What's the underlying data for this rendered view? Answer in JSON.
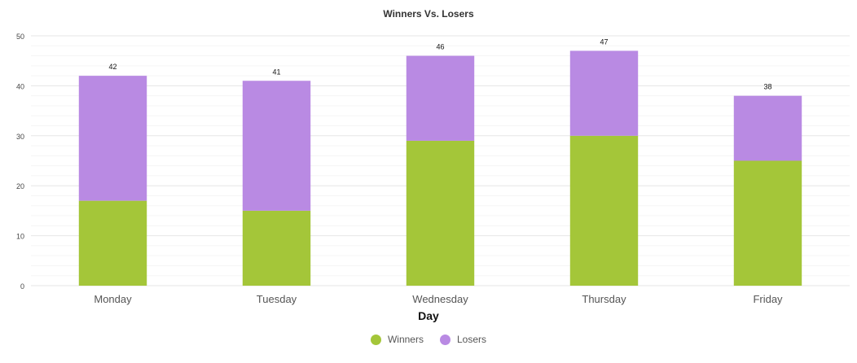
{
  "chart_data": {
    "type": "bar",
    "stacked": true,
    "title": "Winners Vs. Losers",
    "xlabel": "Day",
    "ylabel": "",
    "ylim": [
      0,
      50
    ],
    "yticks": [
      0,
      10,
      20,
      30,
      40,
      50
    ],
    "categories": [
      "Monday",
      "Tuesday",
      "Wednesday",
      "Thursday",
      "Friday"
    ],
    "series": [
      {
        "name": "Winners",
        "values": [
          17,
          15,
          29,
          30,
          25
        ],
        "color": "#a4c639"
      },
      {
        "name": "Losers",
        "values": [
          25,
          26,
          17,
          17,
          13
        ],
        "color": "#b98ae3"
      }
    ],
    "totals": [
      42,
      41,
      46,
      47,
      38
    ],
    "grid": true,
    "legend_position": "bottom"
  }
}
